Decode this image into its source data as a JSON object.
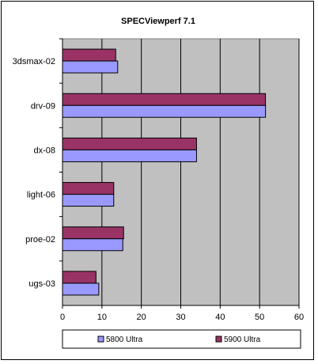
{
  "chart_data": {
    "type": "bar",
    "orientation": "horizontal",
    "title": "SPECViewperf 7.1",
    "categories": [
      "3dsmax-02",
      "drv-09",
      "dx-08",
      "light-06",
      "proe-02",
      "ugs-03"
    ],
    "series": [
      {
        "name": "5900 Ultra",
        "color": "#993366",
        "values": [
          13.5,
          51.5,
          34,
          13,
          15.5,
          8.5
        ]
      },
      {
        "name": "5800 Ultra",
        "color": "#9999ff",
        "values": [
          14,
          51.5,
          34,
          13,
          15.3,
          9.2
        ]
      }
    ],
    "xlim": [
      0,
      60
    ],
    "xticks": [
      "0",
      "10",
      "20",
      "30",
      "40",
      "50",
      "60"
    ],
    "xlabel": "",
    "ylabel": "",
    "grid": "vertical major gridlines",
    "plot_background": "#c0c0c0",
    "legend": {
      "position": "bottom",
      "entries": [
        "5800 Ultra",
        "5900 Ultra"
      ]
    }
  }
}
